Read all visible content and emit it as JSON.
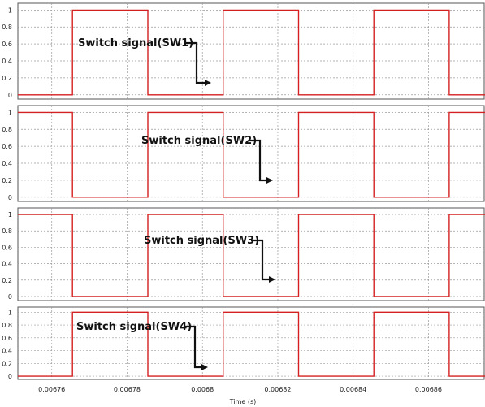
{
  "chart_data": {
    "type": "line",
    "xlabel": "Time (s)",
    "xlim": [
      0.006751,
      0.006875
    ],
    "x_ticks": [
      "0.00676",
      "0.00678",
      "0.0068",
      "0.00682",
      "0.00684",
      "0.00686"
    ],
    "x_tick_values": [
      0.00676,
      0.00678,
      0.0068,
      0.00682,
      0.00684,
      0.00686
    ],
    "y_ticks": [
      "0",
      "0.2",
      "0.4",
      "0.6",
      "0.8",
      "1"
    ],
    "y_tick_values": [
      0,
      0.2,
      0.4,
      0.6,
      0.8,
      1
    ],
    "ylim": [
      -0.05,
      1.08
    ],
    "grid": true,
    "line_color": "#d42020",
    "panels": [
      {
        "annotation": "Switch signal(SW1)",
        "series": {
          "x": [
            0.006751,
            0.0067655,
            0.0067655,
            0.0067855,
            0.0067855,
            0.0068055,
            0.0068055,
            0.0068255,
            0.0068255,
            0.0068455,
            0.0068455,
            0.0068655,
            0.0068655,
            0.006875
          ],
          "y": [
            0,
            0,
            1,
            1,
            0,
            0,
            1,
            1,
            0,
            0,
            1,
            1,
            0,
            0
          ]
        }
      },
      {
        "annotation": "Switch signal(SW2)",
        "series": {
          "x": [
            0.006751,
            0.0067655,
            0.0067655,
            0.0067855,
            0.0067855,
            0.0068055,
            0.0068055,
            0.0068255,
            0.0068255,
            0.0068455,
            0.0068455,
            0.0068655,
            0.0068655,
            0.006875
          ],
          "y": [
            1,
            1,
            0,
            0,
            1,
            1,
            0,
            0,
            1,
            1,
            0,
            0,
            1,
            1
          ]
        }
      },
      {
        "annotation": "Switch signal(SW3)",
        "series": {
          "x": [
            0.006751,
            0.0067655,
            0.0067655,
            0.0067855,
            0.0067855,
            0.0068055,
            0.0068055,
            0.0068255,
            0.0068255,
            0.0068455,
            0.0068455,
            0.0068655,
            0.0068655,
            0.006875
          ],
          "y": [
            1,
            1,
            0,
            0,
            1,
            1,
            0,
            0,
            1,
            1,
            0,
            0,
            1,
            1
          ]
        }
      },
      {
        "annotation": "Switch signal(SW4)",
        "series": {
          "x": [
            0.006751,
            0.0067655,
            0.0067655,
            0.0067855,
            0.0067855,
            0.0068055,
            0.0068055,
            0.0068255,
            0.0068255,
            0.0068455,
            0.0068455,
            0.0068655,
            0.0068655,
            0.006875
          ],
          "y": [
            0,
            0,
            1,
            1,
            0,
            0,
            1,
            1,
            0,
            0,
            1,
            1,
            0,
            0
          ]
        }
      }
    ]
  }
}
